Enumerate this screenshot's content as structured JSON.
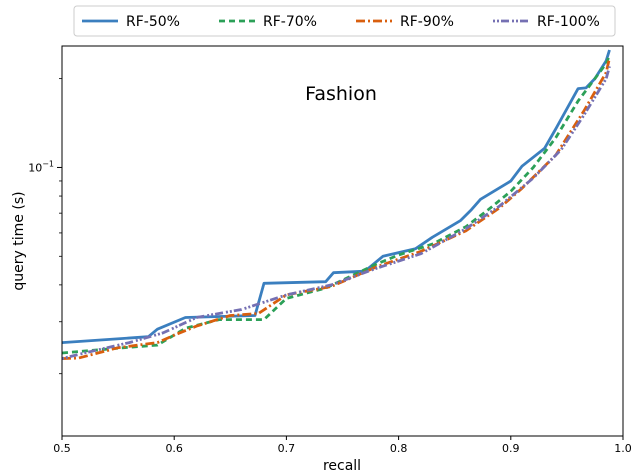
{
  "chart_data": {
    "type": "line",
    "title": "",
    "annotation": "Fashion",
    "xlabel": "recall",
    "ylabel": "query time (s)",
    "xlim": [
      0.5,
      1.0
    ],
    "ylim": [
      0.0123,
      0.258
    ],
    "y_scale": "log",
    "grid": false,
    "legend_position": "top",
    "x_ticks": [
      0.5,
      0.6,
      0.7,
      0.8,
      0.9,
      1.0
    ],
    "x_tick_labels": [
      "0.5",
      "0.6",
      "0.7",
      "0.8",
      "0.9",
      "1.0"
    ],
    "y_major_ticks": [
      {
        "value": 0.1,
        "base": "10",
        "exp": "−1"
      }
    ],
    "y_minor_ticks": [
      0.02,
      0.03,
      0.04,
      0.05,
      0.06,
      0.07,
      0.08,
      0.09,
      0.2
    ],
    "series": [
      {
        "name": "RF-50%",
        "color": "#3b7fbf",
        "dash": "solid",
        "x": [
          0.5,
          0.577,
          0.585,
          0.61,
          0.672,
          0.68,
          0.735,
          0.742,
          0.77,
          0.786,
          0.815,
          0.83,
          0.855,
          0.865,
          0.873,
          0.9,
          0.91,
          0.93,
          0.94,
          0.96,
          0.967,
          0.975,
          0.985,
          0.988
        ],
        "y": [
          0.0255,
          0.0267,
          0.0283,
          0.031,
          0.0315,
          0.0405,
          0.041,
          0.044,
          0.0445,
          0.05,
          0.053,
          0.058,
          0.066,
          0.072,
          0.078,
          0.09,
          0.101,
          0.116,
          0.135,
          0.185,
          0.186,
          0.2,
          0.23,
          0.25
        ]
      },
      {
        "name": "RF-70%",
        "color": "#2ca058",
        "dash": "6,4",
        "x": [
          0.5,
          0.555,
          0.585,
          0.61,
          0.64,
          0.68,
          0.7,
          0.735,
          0.78,
          0.8,
          0.83,
          0.86,
          0.88,
          0.9,
          0.92,
          0.94,
          0.96,
          0.975,
          0.985,
          0.988
        ],
        "y": [
          0.0235,
          0.0245,
          0.025,
          0.0285,
          0.0305,
          0.0305,
          0.036,
          0.039,
          0.047,
          0.0505,
          0.055,
          0.063,
          0.072,
          0.083,
          0.1,
          0.126,
          0.168,
          0.2,
          0.225,
          0.24
        ]
      },
      {
        "name": "RF-90%",
        "color": "#d95f0e",
        "dash": "9,3,2,3",
        "x": [
          0.5,
          0.515,
          0.55,
          0.585,
          0.6,
          0.62,
          0.65,
          0.675,
          0.7,
          0.74,
          0.78,
          0.82,
          0.86,
          0.89,
          0.91,
          0.94,
          0.965,
          0.985,
          0.988
        ],
        "y": [
          0.0225,
          0.0226,
          0.0245,
          0.0255,
          0.027,
          0.029,
          0.0315,
          0.032,
          0.037,
          0.0395,
          0.046,
          0.052,
          0.061,
          0.073,
          0.085,
          0.11,
          0.155,
          0.21,
          0.235
        ]
      },
      {
        "name": "RF-100%",
        "color": "#7570b3",
        "dash": "2,2,2,2,8,3",
        "x": [
          0.5,
          0.52,
          0.56,
          0.59,
          0.62,
          0.66,
          0.7,
          0.74,
          0.78,
          0.82,
          0.86,
          0.89,
          0.92,
          0.945,
          0.965,
          0.985,
          0.988
        ],
        "y": [
          0.0225,
          0.0235,
          0.0255,
          0.0275,
          0.031,
          0.033,
          0.037,
          0.04,
          0.0455,
          0.051,
          0.062,
          0.074,
          0.092,
          0.115,
          0.15,
          0.2,
          0.22
        ]
      }
    ]
  }
}
